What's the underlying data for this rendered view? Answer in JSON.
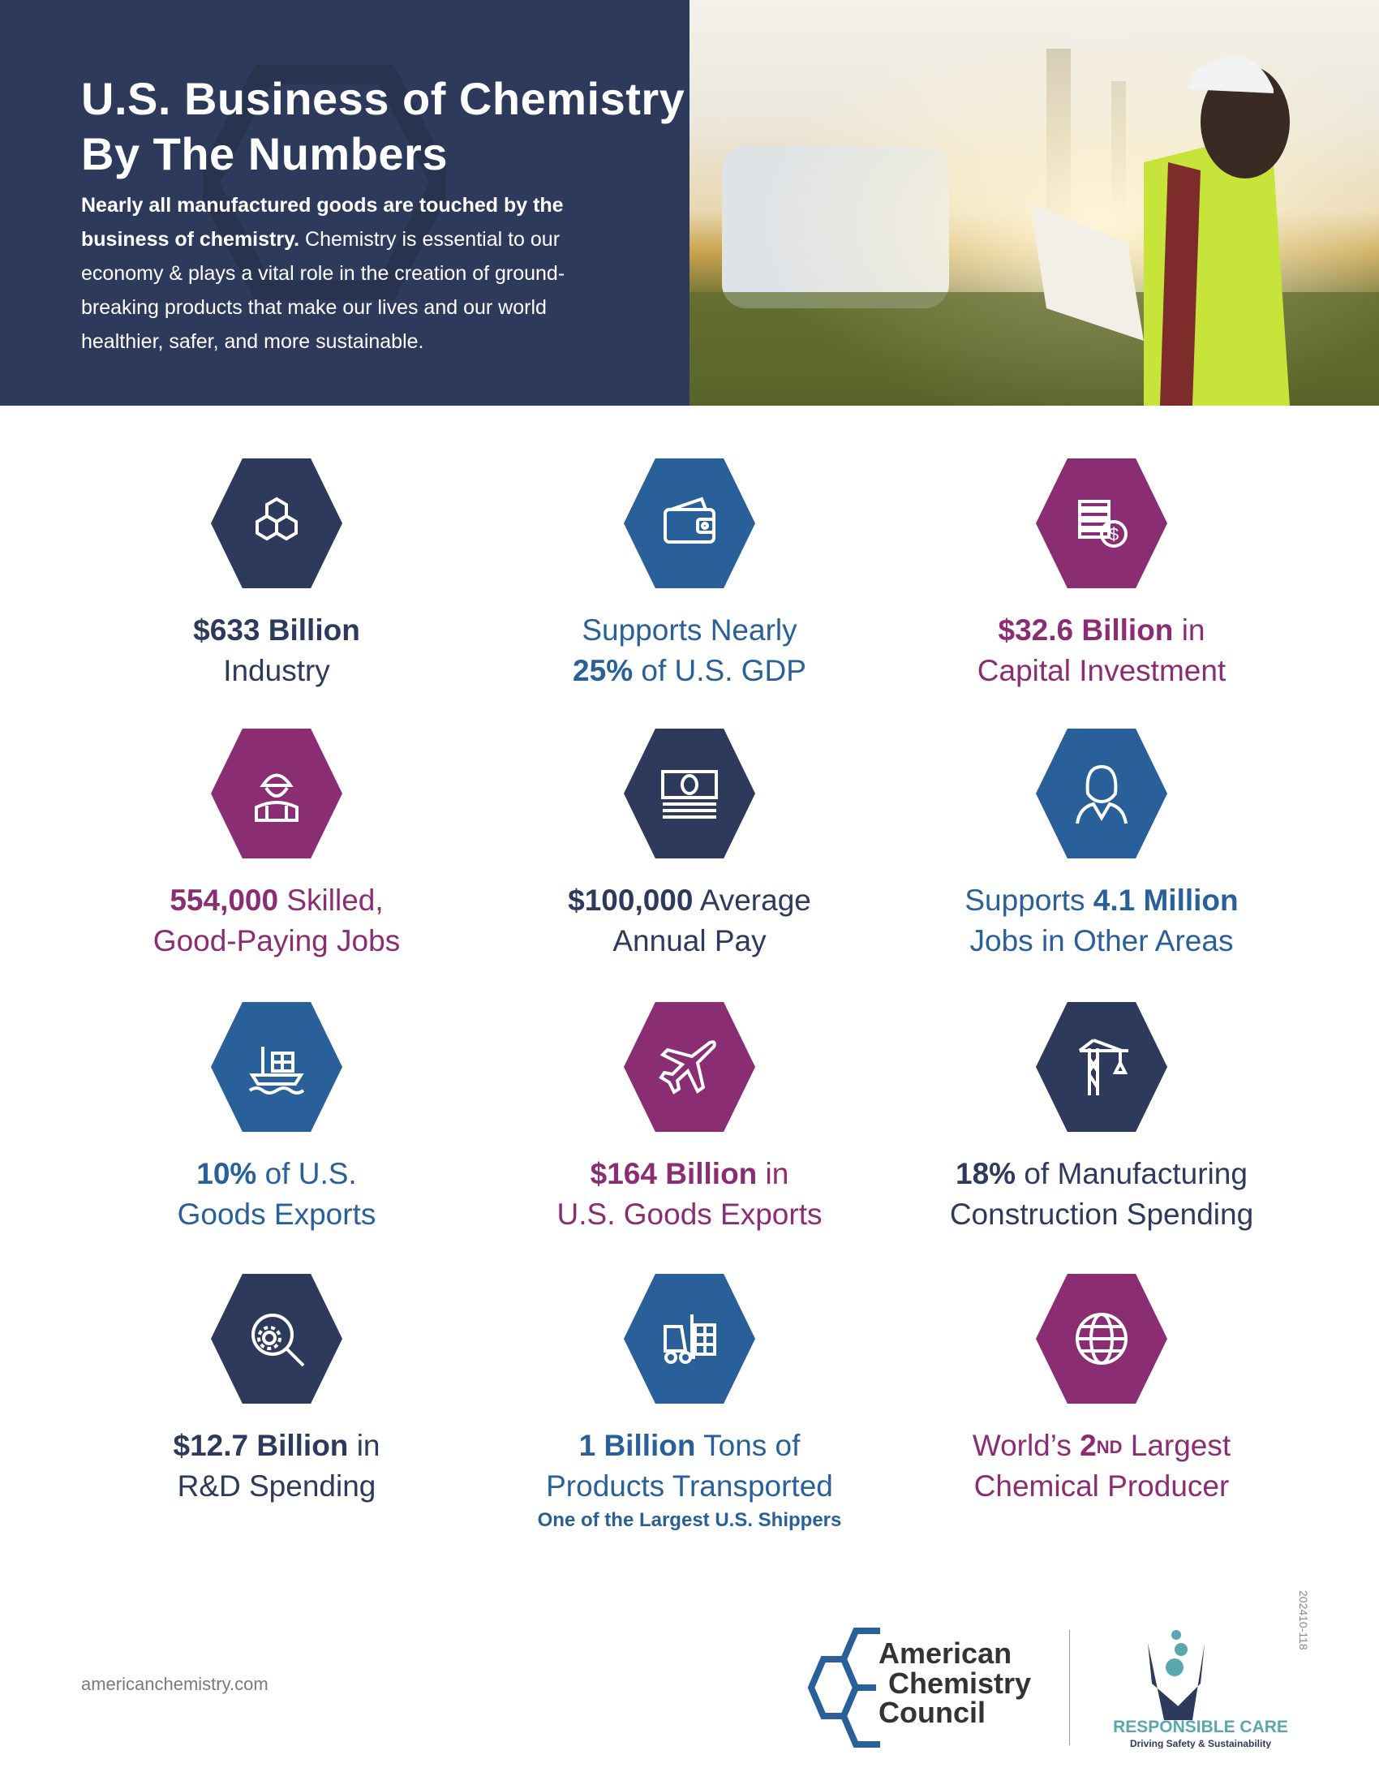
{
  "header": {
    "title_line1": "U.S. Business of Chemistry",
    "title_line2": "By The Numbers",
    "intro_bold": "Nearly all manufactured goods are touched by the business of chemistry.",
    "intro_rest": " Chemistry is essential to our economy & plays a vital role in the creation of ground-breaking products that make our lives and our world healthier, safer, and more sustainable."
  },
  "colors": {
    "navy": "#2e3a5c",
    "blue": "#2a6099",
    "purple": "#8b2d72",
    "teal": "#5aa7b0"
  },
  "stats": [
    {
      "icon": "molecule-icon",
      "color": "navy",
      "lines": [
        [
          {
            "t": "$633 Billion",
            "b": true
          }
        ],
        [
          {
            "t": "Industry"
          }
        ]
      ]
    },
    {
      "icon": "wallet-icon",
      "color": "blue",
      "lines": [
        [
          {
            "t": "Supports Nearly"
          }
        ],
        [
          {
            "t": "25%",
            "b": true
          },
          {
            "t": " of U.S. GDP"
          }
        ]
      ]
    },
    {
      "icon": "coins-dollar-icon",
      "color": "purple",
      "lines": [
        [
          {
            "t": "$32.6 Billion",
            "b": true
          },
          {
            "t": " in"
          }
        ],
        [
          {
            "t": "Capital Investment"
          }
        ]
      ]
    },
    {
      "icon": "worker-hardhat-icon",
      "color": "purple",
      "lines": [
        [
          {
            "t": "554,000",
            "b": true
          },
          {
            "t": " Skilled,"
          }
        ],
        [
          {
            "t": "Good-Paying Jobs"
          }
        ]
      ]
    },
    {
      "icon": "cash-bill-icon",
      "color": "navy",
      "lines": [
        [
          {
            "t": "$100,000",
            "b": true
          },
          {
            "t": " Average"
          }
        ],
        [
          {
            "t": "Annual Pay"
          }
        ]
      ]
    },
    {
      "icon": "person-icon",
      "color": "blue",
      "lines": [
        [
          {
            "t": "Supports "
          },
          {
            "t": "4.1 Million",
            "b": true
          }
        ],
        [
          {
            "t": "Jobs in Other Areas"
          }
        ]
      ]
    },
    {
      "icon": "cargo-ship-icon",
      "color": "blue",
      "lines": [
        [
          {
            "t": "10%",
            "b": true
          },
          {
            "t": " of U.S."
          }
        ],
        [
          {
            "t": "Goods Exports"
          }
        ]
      ]
    },
    {
      "icon": "airplane-icon",
      "color": "purple",
      "lines": [
        [
          {
            "t": "$164 Billion",
            "b": true
          },
          {
            "t": " in"
          }
        ],
        [
          {
            "t": "U.S. Goods Exports"
          }
        ]
      ]
    },
    {
      "icon": "construction-crane-icon",
      "color": "navy",
      "lines": [
        [
          {
            "t": "18%",
            "b": true
          },
          {
            "t": " of Manufacturing"
          }
        ],
        [
          {
            "t": "Construction Spending"
          }
        ]
      ]
    },
    {
      "icon": "gear-magnifier-icon",
      "color": "navy",
      "lines": [
        [
          {
            "t": "$12.7 Billion",
            "b": true
          },
          {
            "t": " in"
          }
        ],
        [
          {
            "t": "R&D Spending"
          }
        ]
      ]
    },
    {
      "icon": "forklift-icon",
      "color": "blue",
      "lines": [
        [
          {
            "t": "1 Billion",
            "b": true
          },
          {
            "t": " Tons of"
          }
        ],
        [
          {
            "t": "Products Transported"
          }
        ]
      ],
      "sub": "One of the Largest U.S. Shippers"
    },
    {
      "icon": "globe-icon",
      "color": "purple",
      "lines": [
        [
          {
            "t": "World’s "
          },
          {
            "t": "2",
            "b": true
          },
          {
            "t": "ND",
            "sup": true
          },
          {
            "t": " Largest"
          }
        ],
        [
          {
            "t": "Chemical Producer"
          }
        ]
      ]
    }
  ],
  "footer": {
    "url": "americanchemistry.com",
    "doc_code": "202410-118",
    "acc_logo": [
      "American",
      "Chemistry",
      "Council"
    ],
    "rc_logo": {
      "name": "RESPONSIBLE CARE",
      "tagline": "Driving Safety & Sustainability"
    }
  }
}
